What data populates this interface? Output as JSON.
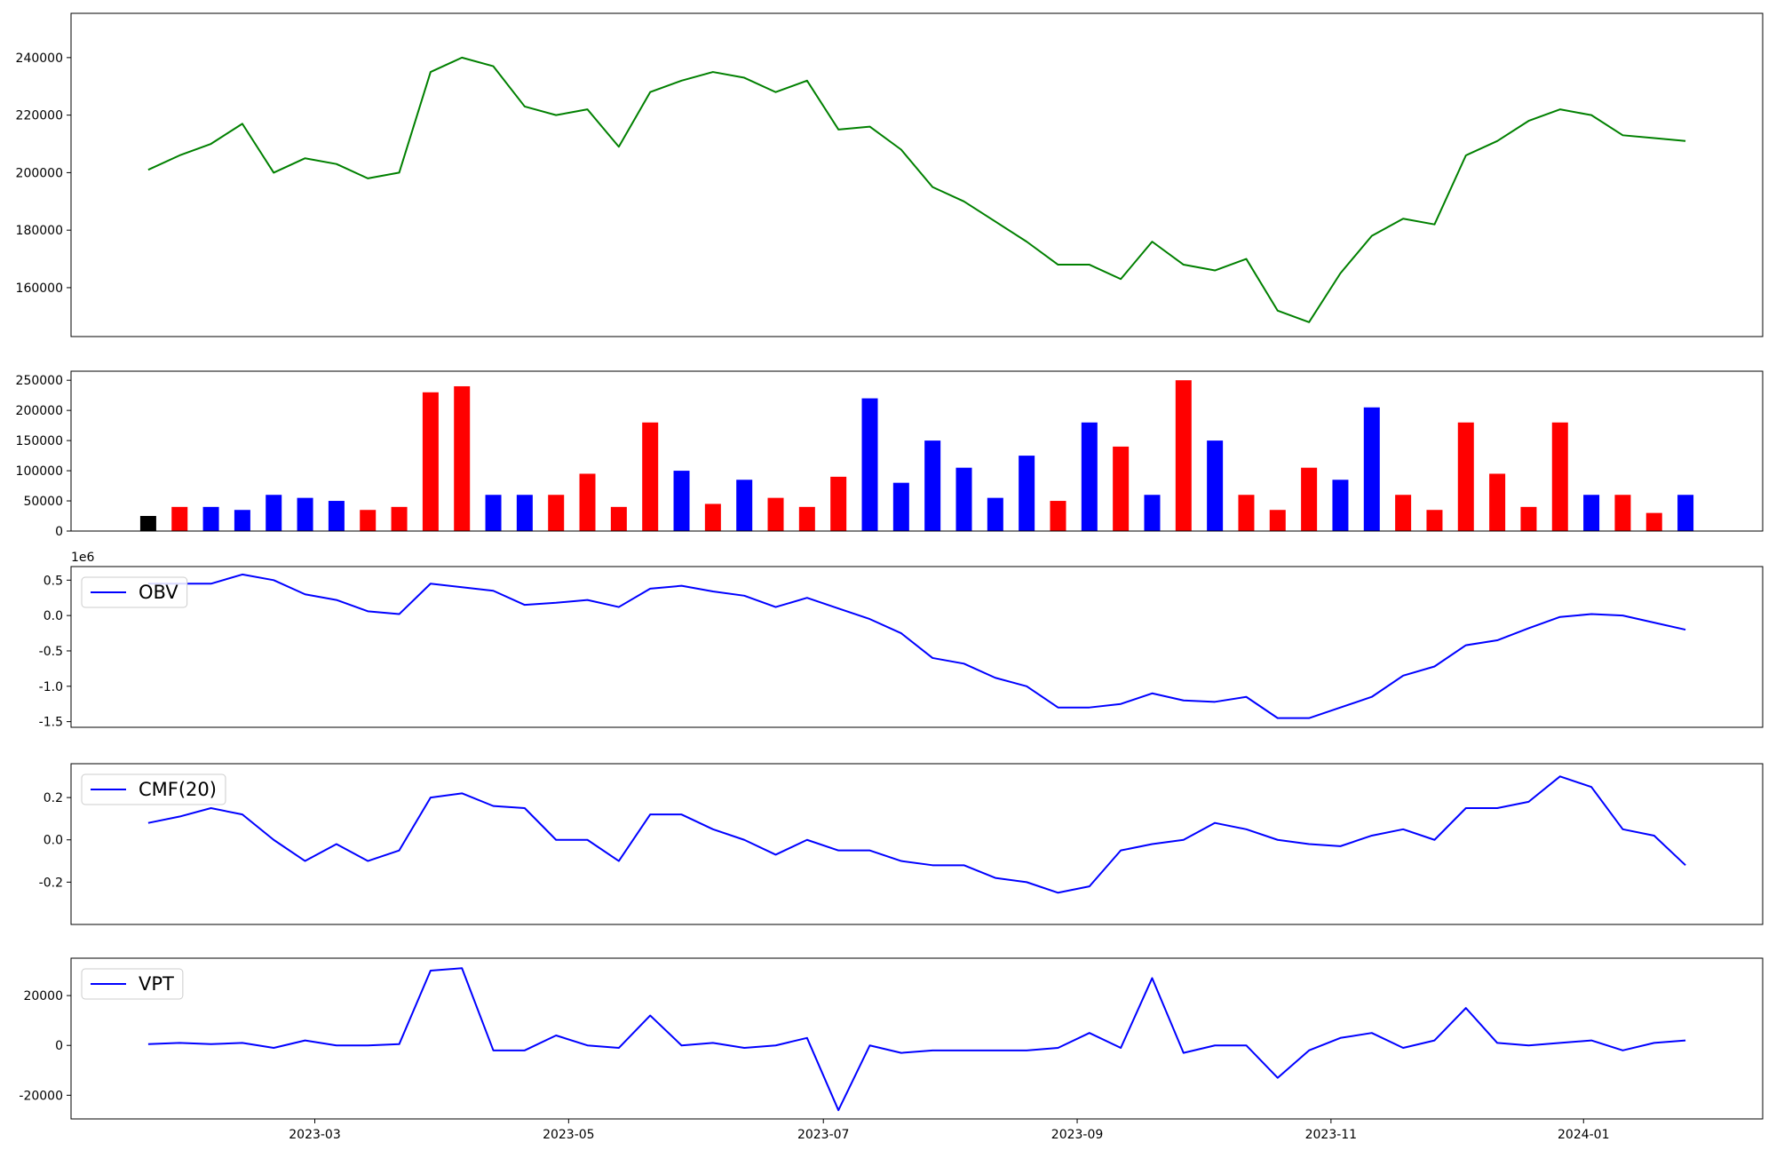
{
  "chart_data": [
    {
      "type": "line",
      "xlim": [
        -2.46,
        51.46
      ],
      "ylim": [
        143000,
        255400
      ],
      "yticks": [
        160000,
        180000,
        200000,
        220000,
        240000
      ],
      "series": [
        {
          "color": "green",
          "values": [
            201000,
            206000,
            210000,
            217000,
            200000,
            205000,
            203000,
            198000,
            200000,
            235000,
            240000,
            237000,
            223000,
            220000,
            222000,
            209000,
            228000,
            232000,
            235000,
            233000,
            228000,
            232000,
            215000,
            216000,
            208000,
            195000,
            190000,
            183000,
            176000,
            168000,
            168000,
            163000,
            176000,
            168000,
            166000,
            170000,
            152000,
            148000,
            165000,
            178000,
            184000,
            182000,
            206000,
            211000,
            218000,
            222000,
            220000,
            213000,
            212000,
            211000
          ]
        }
      ]
    },
    {
      "type": "bar",
      "xlim": [
        -2.46,
        51.46
      ],
      "ylim": [
        0,
        265000
      ],
      "yticks": [
        0,
        50000,
        100000,
        150000,
        200000,
        250000
      ],
      "values": [
        25000,
        40000,
        40000,
        35000,
        60000,
        55000,
        50000,
        35000,
        40000,
        230000,
        240000,
        60000,
        60000,
        60000,
        95000,
        40000,
        180000,
        100000,
        45000,
        85000,
        55000,
        40000,
        90000,
        220000,
        80000,
        150000,
        105000,
        55000,
        125000,
        50000,
        180000,
        140000,
        60000,
        250000,
        150000,
        60000,
        35000,
        105000,
        85000,
        205000,
        60000,
        35000,
        180000,
        95000,
        40000,
        180000,
        60000,
        60000,
        30000,
        60000
      ],
      "colors": [
        "black",
        "red",
        "blue",
        "blue",
        "blue",
        "blue",
        "blue",
        "red",
        "red",
        "red",
        "red",
        "blue",
        "blue",
        "red",
        "red",
        "red",
        "red",
        "blue",
        "red",
        "blue",
        "red",
        "red",
        "red",
        "blue",
        "blue",
        "blue",
        "blue",
        "blue",
        "blue",
        "red",
        "blue",
        "red",
        "blue",
        "red",
        "blue",
        "red",
        "red",
        "red",
        "blue",
        "blue",
        "red",
        "red",
        "red",
        "red",
        "red",
        "red",
        "blue",
        "red",
        "red",
        "blue"
      ]
    },
    {
      "type": "line",
      "xlim": [
        -2.46,
        51.46
      ],
      "ylim": [
        -1580000,
        692000
      ],
      "y_offset_label": "1e6",
      "yticks": [
        {
          "value": -1500000,
          "label": "-1.5"
        },
        {
          "value": -1000000,
          "label": "-1.0"
        },
        {
          "value": -500000,
          "label": "-0.5"
        },
        {
          "value": 0,
          "label": "0.0"
        },
        {
          "value": 500000,
          "label": "0.5"
        }
      ],
      "legend": "upper left",
      "series": [
        {
          "name": "OBV",
          "color": "blue",
          "values": [
            450000,
            450000,
            450000,
            580000,
            500000,
            300000,
            220000,
            60000,
            20000,
            450000,
            400000,
            350000,
            150000,
            180000,
            220000,
            120000,
            380000,
            420000,
            340000,
            280000,
            120000,
            250000,
            100000,
            -50000,
            -250000,
            -600000,
            -680000,
            -880000,
            -1000000,
            -1300000,
            -1300000,
            -1250000,
            -1100000,
            -1200000,
            -1220000,
            -1150000,
            -1450000,
            -1450000,
            -1300000,
            -1150000,
            -850000,
            -720000,
            -420000,
            -350000,
            -180000,
            -20000,
            20000,
            0,
            -100000,
            -200000
          ]
        }
      ]
    },
    {
      "type": "line",
      "xlim": [
        -2.46,
        51.46
      ],
      "ylim": [
        -0.4,
        0.36
      ],
      "yticks": [
        -0.2,
        {
          "value": 0,
          "label": "0.0"
        },
        0.2
      ],
      "legend": "upper left",
      "series": [
        {
          "name": "CMF(20)",
          "color": "blue",
          "values": [
            0.08,
            0.11,
            0.15,
            0.12,
            0.0,
            -0.1,
            -0.02,
            -0.1,
            -0.05,
            0.2,
            0.22,
            0.16,
            0.15,
            0.0,
            0.0,
            -0.1,
            0.12,
            0.12,
            0.05,
            0.0,
            -0.07,
            0.0,
            -0.05,
            -0.05,
            -0.1,
            -0.12,
            -0.12,
            -0.18,
            -0.2,
            -0.25,
            -0.22,
            -0.05,
            -0.02,
            0.0,
            0.08,
            0.05,
            0.0,
            -0.02,
            -0.03,
            0.02,
            0.05,
            0.0,
            0.15,
            0.15,
            0.18,
            0.3,
            0.25,
            0.05,
            0.02,
            -0.12
          ]
        }
      ]
    },
    {
      "type": "line",
      "xlim": [
        -2.46,
        51.46
      ],
      "ylim": [
        -29500,
        35000
      ],
      "yticks": [
        -20000,
        0,
        20000
      ],
      "xticks": [
        {
          "value": 5.31,
          "label": "2023-03"
        },
        {
          "value": 13.4,
          "label": "2023-05"
        },
        {
          "value": 21.52,
          "label": "2023-07"
        },
        {
          "value": 29.61,
          "label": "2023-09"
        },
        {
          "value": 37.7,
          "label": "2023-11"
        },
        {
          "value": 45.75,
          "label": "2024-01"
        }
      ],
      "legend": "upper left",
      "series": [
        {
          "name": "VPT",
          "color": "blue",
          "values": [
            500,
            1000,
            500,
            1000,
            -1000,
            2000,
            0,
            0,
            500,
            30000,
            31000,
            -2000,
            -2000,
            4000,
            0,
            -1000,
            12000,
            0,
            1000,
            -1000,
            0,
            3000,
            -26000,
            0,
            -3000,
            -2000,
            -2000,
            -2000,
            -2000,
            -1000,
            5000,
            -1000,
            27000,
            -3000,
            0,
            0,
            -13000,
            -2000,
            3000,
            5000,
            -1000,
            2000,
            15000,
            1000,
            0,
            1000,
            2000,
            -2000,
            1000,
            2000
          ]
        }
      ]
    }
  ]
}
